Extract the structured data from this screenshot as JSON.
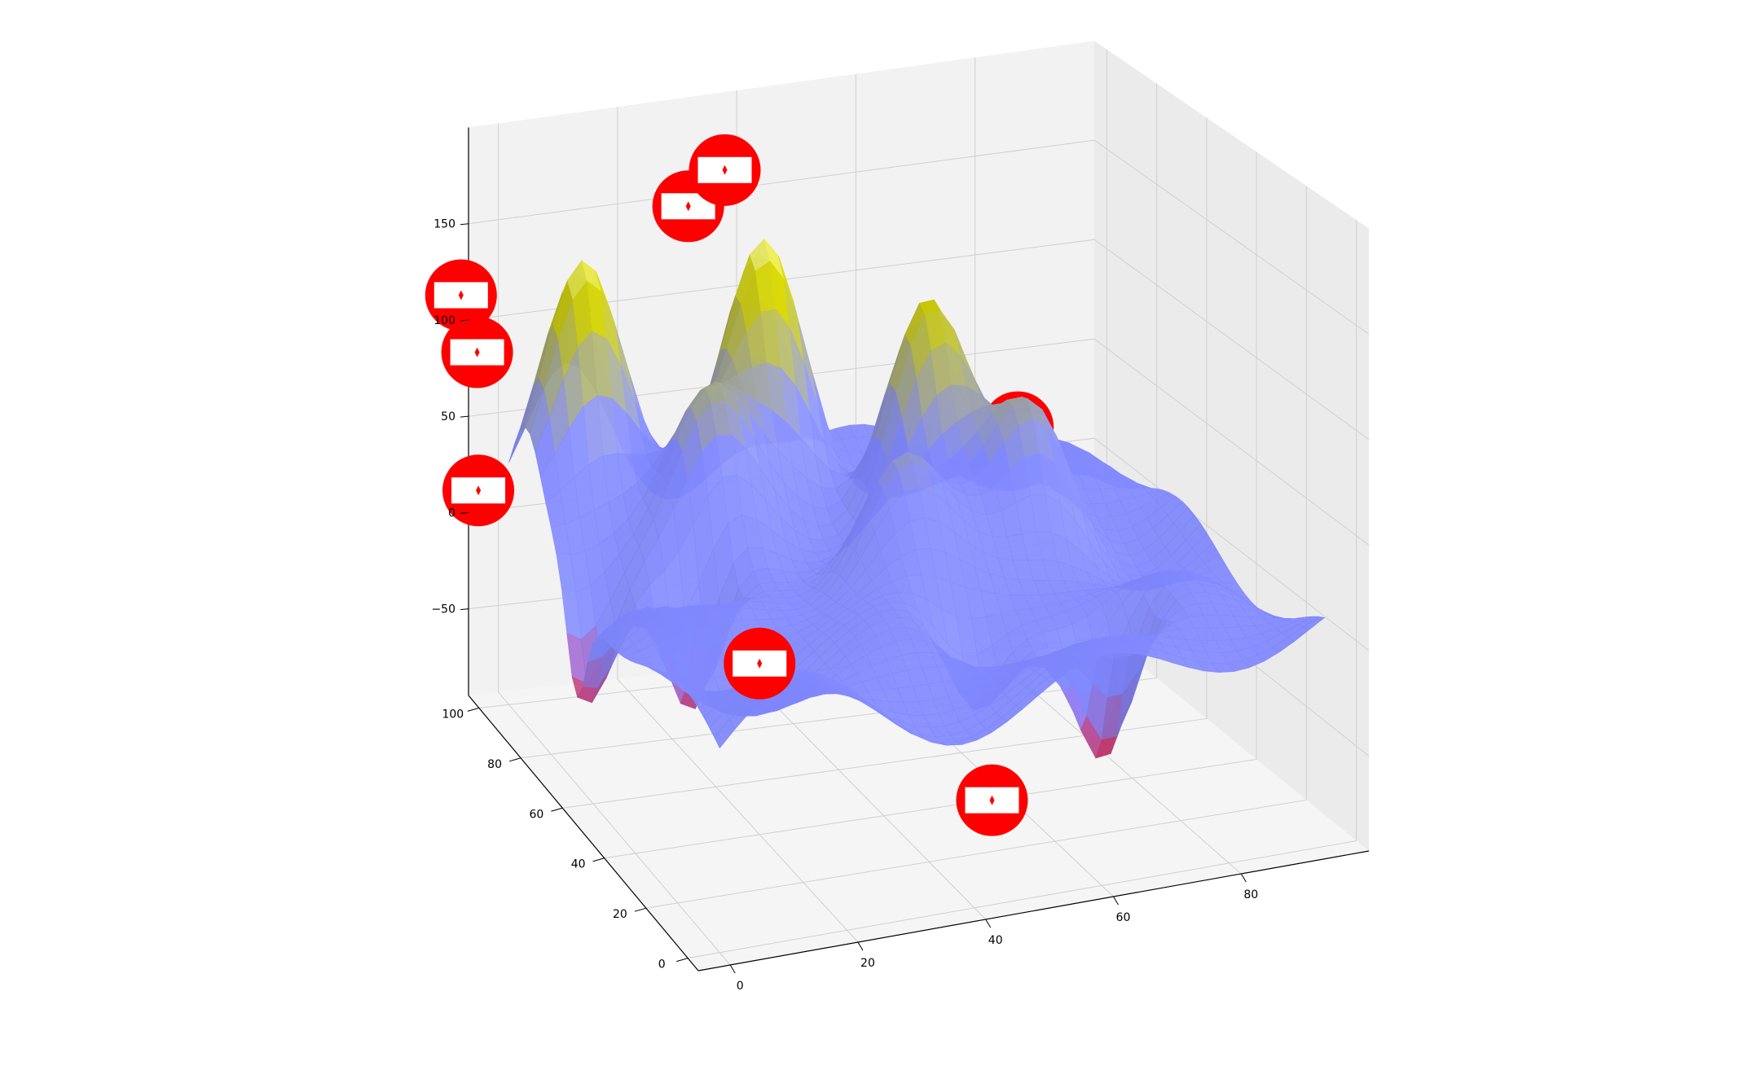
{
  "chart_data": {
    "type": "surface3d",
    "title": "",
    "xlabel": "",
    "ylabel": "",
    "zlabel": "",
    "grid": true,
    "x_ticks": [
      "0",
      "20",
      "40",
      "60",
      "80"
    ],
    "y_ticks": [
      "0",
      "20",
      "40",
      "60",
      "80",
      "100"
    ],
    "z_ticks": [
      "−50",
      "0",
      "50",
      "100",
      "150"
    ],
    "xlim": [
      -5,
      100
    ],
    "ylim": [
      -5,
      105
    ],
    "zlim": [
      -95,
      200
    ],
    "surface": {
      "description_grid_size": 21,
      "colors": {
        "low": "#e8192c",
        "mid": "#8088ff",
        "high": "#c8c800",
        "peak": "#ffffc0"
      },
      "peaks": [
        {
          "x": 10,
          "y": 92,
          "z": 135
        },
        {
          "x": 38,
          "y": 88,
          "z": 135
        },
        {
          "x": 58,
          "y": 70,
          "z": 130
        },
        {
          "x": 70,
          "y": 55,
          "z": 80
        },
        {
          "x": 24,
          "y": 75,
          "z": 75
        },
        {
          "x": 46,
          "y": 50,
          "z": 60
        }
      ],
      "troughs": [
        {
          "x": 16,
          "y": 60,
          "z": -80
        },
        {
          "x": 2,
          "y": 68,
          "z": -60
        },
        {
          "x": 68,
          "y": 20,
          "z": -70
        },
        {
          "x": 50,
          "y": 28,
          "z": -40
        }
      ]
    },
    "markers": [
      {
        "x": -8,
        "y": 100,
        "z": 120,
        "color": "#ff0000",
        "icon": "no-entry-icon"
      },
      {
        "x": -6,
        "y": 98,
        "z": 92,
        "color": "#ff0000",
        "icon": "no-entry-icon"
      },
      {
        "x": -12,
        "y": 80,
        "z": 45,
        "color": "#ff0000",
        "icon": "no-entry-icon"
      },
      {
        "x": 30,
        "y": 100,
        "z": 150,
        "color": "#ff0000",
        "icon": "no-entry-icon"
      },
      {
        "x": 38,
        "y": 105,
        "z": 160,
        "color": "#ff0000",
        "icon": "no-entry-icon"
      },
      {
        "x": 20,
        "y": 40,
        "z": -10,
        "color": "#ff0000",
        "icon": "no-entry-icon"
      },
      {
        "x": 70,
        "y": 62,
        "z": 60,
        "color": "#ff0000",
        "icon": "no-entry-icon"
      },
      {
        "x": 50,
        "y": 20,
        "z": -70,
        "color": "#ff0000",
        "icon": "no-entry-icon"
      }
    ]
  }
}
